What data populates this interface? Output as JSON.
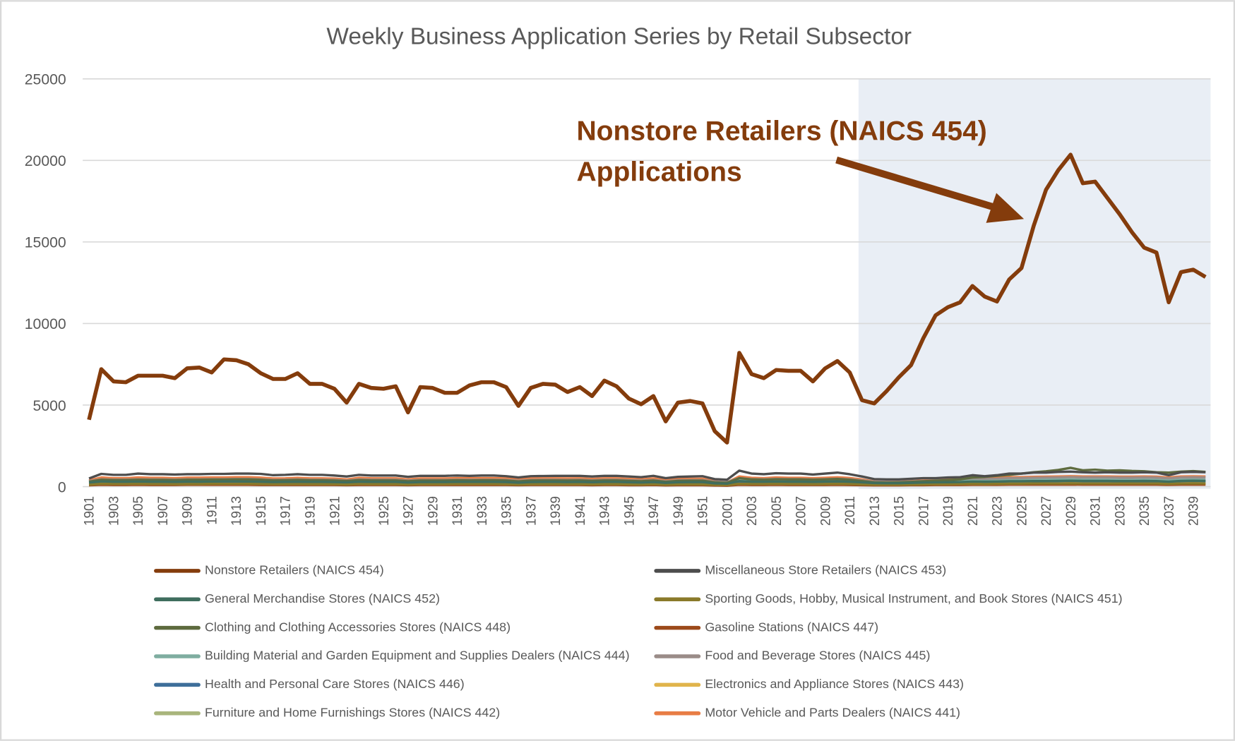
{
  "chart_data": {
    "type": "line",
    "title": "Weekly Business Application Series by Retail Subsector",
    "annotation": [
      "Nonstore Retailers (NAICS 454)",
      "Applications"
    ],
    "ylim": [
      0,
      25000
    ],
    "yticks": [
      0,
      5000,
      10000,
      15000,
      20000,
      25000
    ],
    "grid": true,
    "legend": "bottom",
    "categories": [
      "1901",
      null,
      "1903",
      null,
      "1905",
      null,
      "1907",
      null,
      "1909",
      null,
      "1911",
      null,
      "1913",
      null,
      "1915",
      null,
      "1917",
      null,
      "1919",
      null,
      "1921",
      null,
      "1923",
      null,
      "1925",
      null,
      "1927",
      null,
      "1929",
      null,
      "1931",
      null,
      "1933",
      null,
      "1935",
      null,
      "1937",
      null,
      "1939",
      null,
      "1941",
      null,
      "1943",
      null,
      "1945",
      null,
      "1947",
      null,
      "1949",
      null,
      "1951",
      null,
      "2001",
      null,
      "2003",
      null,
      "2005",
      null,
      "2007",
      null,
      "2009",
      null,
      "2011",
      null,
      "2013",
      null,
      "2015",
      null,
      "2017",
      null,
      "2019",
      null,
      "2021",
      null,
      "2023",
      null,
      "2025",
      null,
      "2027",
      null,
      "2029",
      null,
      "2031",
      null,
      "2033",
      null,
      "2035",
      null,
      "2037",
      null,
      "2039",
      null
    ],
    "series": [
      {
        "name": "Nonstore Retailers (NAICS 454)",
        "color": "#843c0c",
        "values": [
          4100,
          7200,
          6450,
          6400,
          6800,
          6800,
          6800,
          6650,
          7250,
          7300,
          7000,
          7800,
          7750,
          7500,
          6950,
          6600,
          6600,
          6950,
          6300,
          6300,
          6000,
          5150,
          6300,
          6050,
          6000,
          6150,
          4550,
          6100,
          6050,
          5750,
          5750,
          6200,
          6400,
          6400,
          6100,
          4950,
          6050,
          6300,
          6250,
          5800,
          6100,
          5550,
          6500,
          6150,
          5400,
          5050,
          5550,
          4000,
          5150,
          5250,
          5100,
          3400,
          2700,
          8200,
          6900,
          6650,
          7150,
          7100,
          7100,
          6450,
          7250,
          7700,
          7000,
          5300,
          5100,
          5850,
          6700,
          7450,
          9100,
          10500,
          11000,
          11300,
          12300,
          11650,
          11350,
          12700,
          13400,
          16000,
          18200,
          19400,
          20350,
          18600,
          18700,
          17700,
          16700,
          15600,
          14650,
          14350,
          11300,
          13150,
          13300,
          12850
        ]
      },
      {
        "name": "Miscellaneous Store Retailers (NAICS 453)",
        "color": "#4d4d4d",
        "values": [
          500,
          780,
          720,
          720,
          800,
          760,
          760,
          740,
          760,
          760,
          780,
          780,
          800,
          800,
          780,
          700,
          720,
          760,
          720,
          720,
          680,
          620,
          720,
          680,
          680,
          680,
          600,
          660,
          660,
          660,
          680,
          660,
          680,
          680,
          640,
          560,
          640,
          650,
          660,
          660,
          660,
          620,
          660,
          660,
          620,
          580,
          660,
          520,
          600,
          620,
          640,
          460,
          420,
          980,
          800,
          760,
          820,
          800,
          800,
          740,
          800,
          860,
          760,
          620,
          460,
          440,
          440,
          480,
          520,
          520,
          560,
          580,
          700,
          640,
          700,
          800,
          800,
          860,
          860,
          900,
          920,
          880,
          860,
          880,
          860,
          860,
          880,
          860,
          700,
          880,
          900,
          880
        ]
      },
      {
        "name": "General Merchandise Stores (NAICS 452)",
        "color": "#3f6e5e",
        "values": [
          250,
          320,
          300,
          300,
          310,
          300,
          300,
          290,
          310,
          300,
          310,
          320,
          320,
          310,
          300,
          280,
          290,
          300,
          290,
          290,
          280,
          260,
          300,
          290,
          290,
          290,
          250,
          280,
          280,
          280,
          290,
          290,
          290,
          290,
          280,
          240,
          280,
          290,
          290,
          280,
          290,
          270,
          290,
          290,
          270,
          250,
          280,
          230,
          270,
          280,
          280,
          200,
          180,
          340,
          300,
          300,
          310,
          300,
          300,
          290,
          310,
          320,
          300,
          260,
          220,
          210,
          210,
          230,
          250,
          260,
          270,
          280,
          310,
          300,
          310,
          330,
          330,
          340,
          340,
          350,
          360,
          350,
          350,
          350,
          340,
          340,
          350,
          340,
          300,
          350,
          360,
          350
        ]
      },
      {
        "name": "Sporting Goods, Hobby, Musical Instrument, and Book Stores (NAICS 451)",
        "color": "#8a7a2a",
        "values": [
          120,
          170,
          160,
          160,
          170,
          160,
          160,
          150,
          160,
          160,
          170,
          170,
          170,
          170,
          160,
          150,
          150,
          160,
          150,
          150,
          150,
          130,
          160,
          150,
          150,
          150,
          130,
          150,
          150,
          150,
          160,
          160,
          160,
          160,
          150,
          130,
          150,
          150,
          150,
          150,
          150,
          140,
          150,
          150,
          140,
          130,
          150,
          120,
          140,
          140,
          140,
          110,
          100,
          170,
          160,
          160,
          170,
          160,
          160,
          150,
          160,
          170,
          160,
          140,
          120,
          120,
          120,
          130,
          140,
          150,
          150,
          160,
          170,
          160,
          170,
          180,
          180,
          190,
          190,
          190,
          200,
          190,
          190,
          190,
          190,
          190,
          190,
          190,
          170,
          190,
          200,
          190
        ]
      },
      {
        "name": "Clothing and Clothing Accessories Stores (NAICS 448)",
        "color": "#5e6b3e",
        "values": [
          300,
          420,
          400,
          400,
          420,
          410,
          410,
          400,
          420,
          420,
          430,
          430,
          440,
          440,
          420,
          380,
          390,
          410,
          390,
          390,
          370,
          340,
          400,
          380,
          380,
          380,
          330,
          370,
          370,
          370,
          390,
          380,
          390,
          390,
          370,
          320,
          370,
          380,
          380,
          370,
          380,
          350,
          380,
          380,
          350,
          330,
          370,
          290,
          350,
          360,
          360,
          260,
          230,
          520,
          440,
          420,
          450,
          440,
          440,
          420,
          440,
          470,
          420,
          340,
          260,
          250,
          260,
          290,
          330,
          360,
          400,
          440,
          560,
          600,
          660,
          720,
          800,
          880,
          940,
          1020,
          1150,
          1000,
          1040,
          980,
          1000,
          960,
          940,
          880,
          860,
          920,
          950,
          900
        ]
      },
      {
        "name": "Gasoline Stations (NAICS 447)",
        "color": "#9c4a1a",
        "values": [
          80,
          110,
          100,
          100,
          110,
          100,
          100,
          100,
          110,
          110,
          110,
          110,
          110,
          110,
          100,
          100,
          100,
          100,
          100,
          100,
          100,
          90,
          100,
          100,
          100,
          100,
          90,
          100,
          100,
          100,
          100,
          100,
          100,
          100,
          100,
          90,
          100,
          100,
          100,
          100,
          100,
          90,
          100,
          100,
          90,
          90,
          100,
          80,
          90,
          90,
          90,
          70,
          60,
          110,
          100,
          100,
          110,
          100,
          100,
          100,
          100,
          110,
          100,
          90,
          80,
          80,
          80,
          90,
          90,
          100,
          100,
          100,
          110,
          110,
          110,
          120,
          120,
          120,
          120,
          120,
          130,
          120,
          120,
          120,
          120,
          120,
          120,
          120,
          110,
          120,
          120,
          120
        ]
      },
      {
        "name": "Building Material and Garden Equipment and Supplies Dealers (NAICS 444)",
        "color": "#7fada0",
        "values": [
          260,
          330,
          320,
          320,
          340,
          330,
          330,
          320,
          340,
          340,
          350,
          350,
          360,
          360,
          340,
          310,
          320,
          340,
          320,
          320,
          310,
          280,
          330,
          320,
          320,
          320,
          280,
          310,
          310,
          310,
          320,
          320,
          320,
          320,
          310,
          270,
          310,
          320,
          320,
          310,
          320,
          300,
          320,
          320,
          300,
          280,
          310,
          250,
          300,
          310,
          310,
          230,
          200,
          380,
          340,
          330,
          350,
          340,
          340,
          320,
          340,
          360,
          330,
          280,
          230,
          220,
          220,
          250,
          270,
          290,
          300,
          320,
          360,
          340,
          360,
          390,
          390,
          410,
          420,
          430,
          440,
          420,
          420,
          420,
          410,
          410,
          420,
          410,
          370,
          420,
          430,
          420
        ]
      },
      {
        "name": "Food and Beverage Stores (NAICS 445)",
        "color": "#9a8c88",
        "values": [
          340,
          450,
          430,
          430,
          450,
          440,
          440,
          430,
          450,
          450,
          460,
          460,
          470,
          470,
          450,
          410,
          420,
          440,
          420,
          420,
          410,
          370,
          440,
          420,
          420,
          420,
          370,
          410,
          410,
          410,
          420,
          420,
          420,
          420,
          410,
          360,
          410,
          420,
          420,
          410,
          420,
          390,
          420,
          420,
          390,
          370,
          410,
          330,
          390,
          400,
          400,
          300,
          280,
          520,
          460,
          450,
          470,
          460,
          460,
          440,
          460,
          480,
          450,
          380,
          300,
          290,
          290,
          320,
          350,
          380,
          400,
          420,
          480,
          460,
          480,
          520,
          520,
          540,
          550,
          560,
          580,
          560,
          560,
          560,
          550,
          550,
          560,
          550,
          500,
          560,
          570,
          560
        ]
      },
      {
        "name": "Health and Personal Care Stores (NAICS 446)",
        "color": "#3e6f9a",
        "values": [
          210,
          270,
          260,
          260,
          270,
          260,
          260,
          250,
          270,
          270,
          270,
          270,
          280,
          280,
          270,
          250,
          250,
          260,
          250,
          250,
          250,
          220,
          260,
          250,
          250,
          250,
          220,
          240,
          240,
          240,
          250,
          250,
          250,
          250,
          240,
          210,
          240,
          250,
          250,
          240,
          250,
          230,
          250,
          250,
          230,
          220,
          240,
          190,
          230,
          240,
          240,
          180,
          160,
          290,
          270,
          260,
          270,
          260,
          260,
          250,
          260,
          280,
          260,
          220,
          190,
          180,
          180,
          200,
          220,
          240,
          250,
          270,
          300,
          290,
          300,
          320,
          320,
          330,
          340,
          340,
          350,
          340,
          340,
          340,
          330,
          330,
          340,
          330,
          300,
          340,
          350,
          340
        ]
      },
      {
        "name": "Electronics and Appliance Stores (NAICS 443)",
        "color": "#e0b44c",
        "values": [
          130,
          180,
          170,
          170,
          180,
          170,
          170,
          160,
          170,
          170,
          180,
          180,
          180,
          180,
          170,
          160,
          160,
          170,
          160,
          160,
          160,
          140,
          170,
          160,
          160,
          160,
          140,
          160,
          160,
          160,
          170,
          170,
          170,
          170,
          160,
          140,
          160,
          160,
          160,
          160,
          160,
          150,
          160,
          160,
          150,
          140,
          160,
          130,
          150,
          150,
          150,
          120,
          110,
          180,
          170,
          170,
          180,
          170,
          170,
          160,
          170,
          180,
          170,
          150,
          130,
          130,
          130,
          140,
          150,
          160,
          160,
          170,
          180,
          170,
          180,
          190,
          190,
          200,
          200,
          200,
          210,
          200,
          200,
          200,
          200,
          200,
          200,
          200,
          180,
          200,
          210,
          200
        ]
      },
      {
        "name": "Furniture and Home Furnishings Stores (NAICS 442)",
        "color": "#a9b57c",
        "values": [
          170,
          230,
          220,
          220,
          230,
          220,
          220,
          210,
          230,
          230,
          230,
          230,
          240,
          240,
          230,
          210,
          210,
          220,
          210,
          210,
          210,
          190,
          220,
          210,
          210,
          210,
          190,
          200,
          200,
          200,
          210,
          210,
          210,
          210,
          200,
          180,
          200,
          210,
          210,
          200,
          210,
          190,
          210,
          210,
          190,
          180,
          200,
          160,
          190,
          200,
          200,
          150,
          130,
          250,
          230,
          220,
          230,
          220,
          220,
          210,
          220,
          240,
          220,
          190,
          160,
          150,
          150,
          170,
          190,
          200,
          210,
          230,
          260,
          250,
          260,
          280,
          280,
          290,
          300,
          300,
          310,
          300,
          300,
          300,
          290,
          290,
          300,
          290,
          260,
          300,
          310,
          300
        ]
      },
      {
        "name": "Motor Vehicle and Parts Dealers (NAICS 441)",
        "color": "#e87d45",
        "values": [
          380,
          560,
          520,
          520,
          560,
          540,
          540,
          520,
          550,
          550,
          560,
          560,
          580,
          580,
          550,
          500,
          510,
          540,
          510,
          510,
          490,
          440,
          540,
          510,
          510,
          510,
          440,
          500,
          500,
          500,
          520,
          520,
          520,
          520,
          500,
          430,
          500,
          510,
          510,
          500,
          510,
          470,
          510,
          510,
          470,
          440,
          500,
          400,
          470,
          480,
          480,
          330,
          260,
          620,
          540,
          520,
          560,
          540,
          540,
          520,
          540,
          570,
          530,
          440,
          320,
          290,
          300,
          340,
          380,
          420,
          450,
          480,
          540,
          520,
          540,
          580,
          580,
          600,
          610,
          620,
          640,
          620,
          620,
          620,
          610,
          610,
          620,
          610,
          560,
          620,
          630,
          620
        ]
      }
    ]
  }
}
